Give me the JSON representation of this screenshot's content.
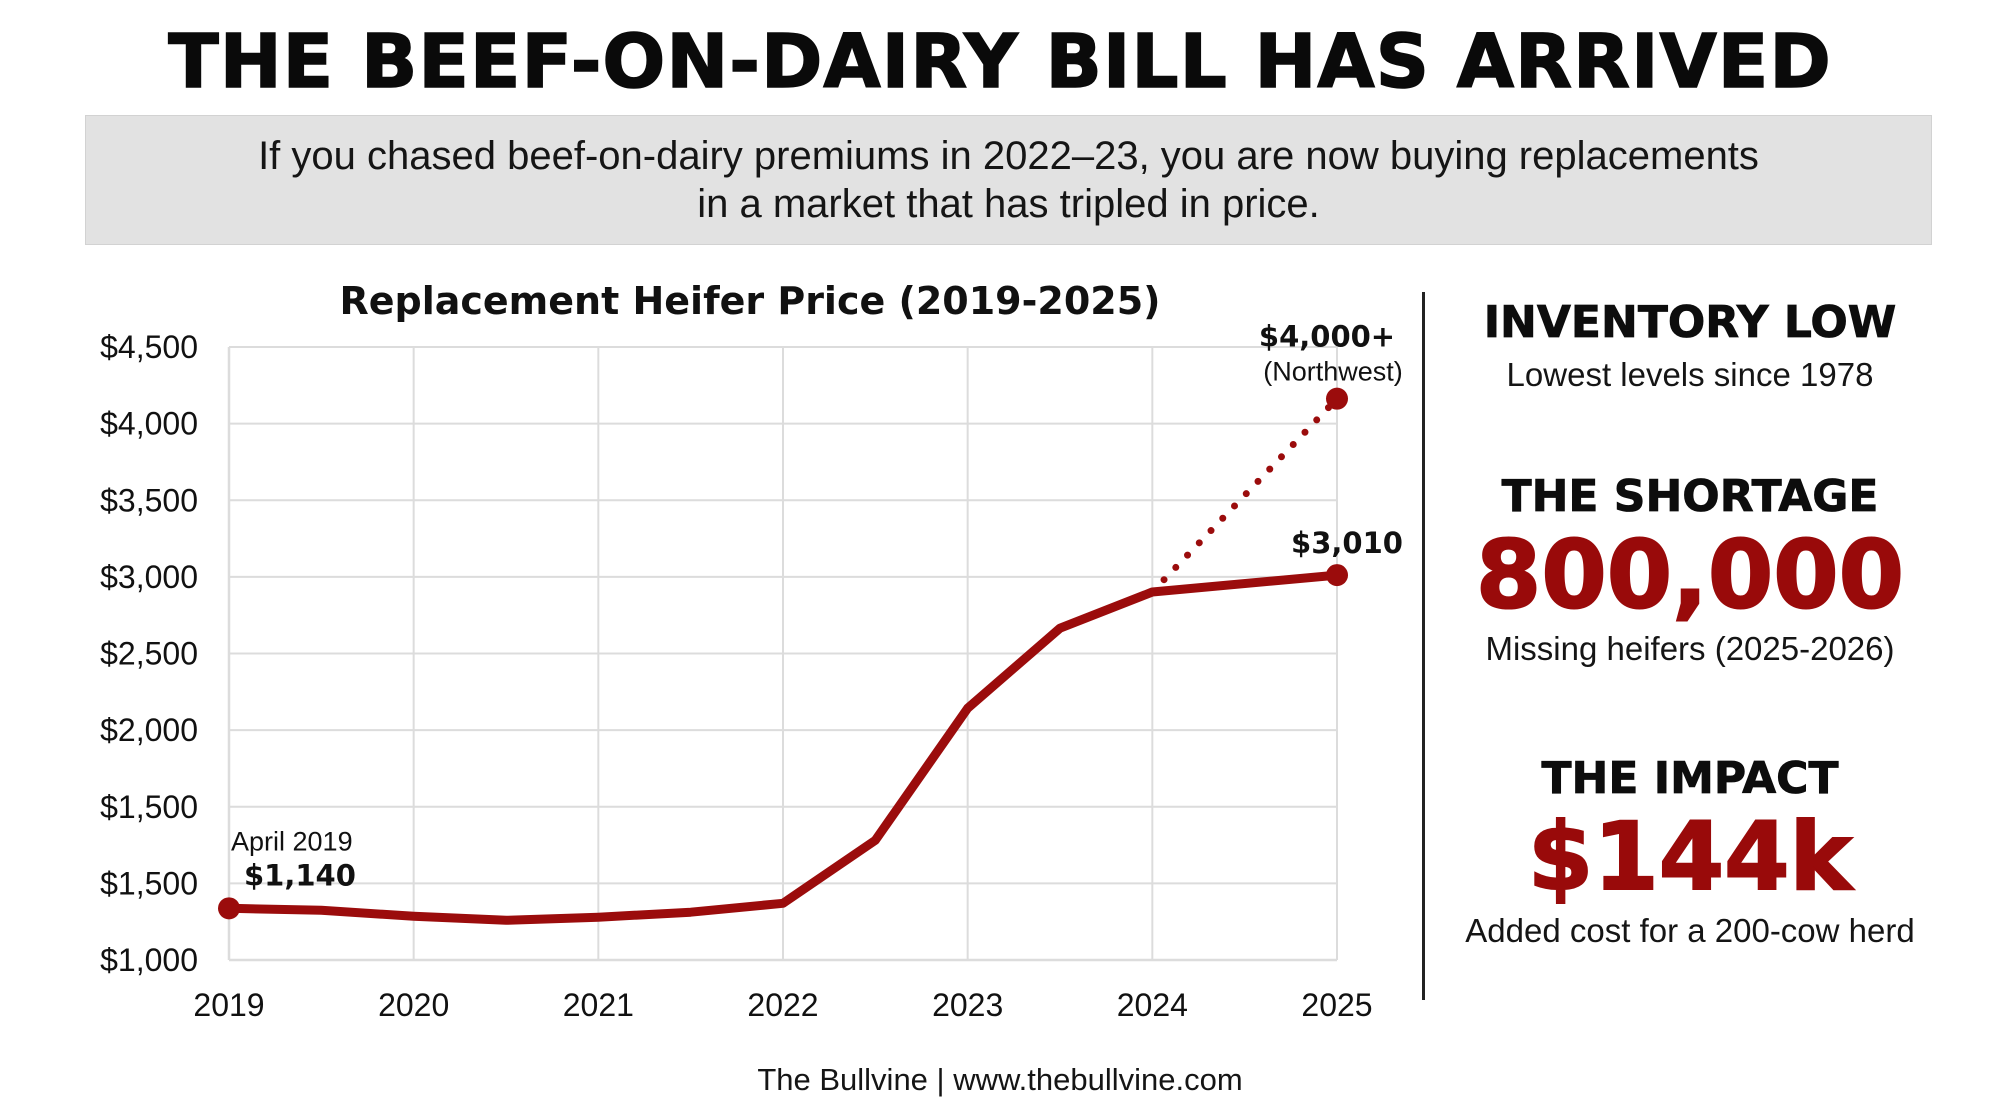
{
  "header": {
    "title": "THE BEEF-ON-DAIRY BILL HAS ARRIVED",
    "subtitle_lines": [
      "If you chased beef-on-dairy premiums in 2022–23, you are now buying replacements",
      "in a market that has tripled in price."
    ]
  },
  "colors": {
    "accent": "#990a0a",
    "line": "#9b0c0c",
    "grid": "#dcdcdc",
    "subtitle_bg": "#e2e2e2",
    "text": "#111111"
  },
  "chart_data": {
    "type": "line",
    "title": "Replacement Heifer Price (2019-2025)",
    "xlabel": "",
    "ylabel": "",
    "x_ticks": [
      "2019",
      "2020",
      "2021",
      "2022",
      "2023",
      "2024",
      "2025"
    ],
    "y_ticks": [
      "$4,500",
      "$4,000",
      "$3,500",
      "$3,000",
      "$2,500",
      "$2,000",
      "$1,500",
      "$1,500",
      "$1,000"
    ],
    "xlim": [
      2019,
      2025
    ],
    "ylim": [
      850,
      4290
    ],
    "grid": true,
    "series": [
      {
        "name": "Replacement heifer price",
        "style": "solid",
        "x": [
          2019,
          2019.5,
          2020,
          2020.5,
          2021,
          2021.5,
          2022,
          2022.5,
          2023,
          2023.5,
          2024,
          2025
        ],
        "y": [
          1140,
          1129,
          1095,
          1073,
          1090,
          1118,
          1168,
          1522,
          2263,
          2712,
          2915,
          3010
        ]
      },
      {
        "name": "Northwest",
        "style": "dotted",
        "x": [
          2024,
          2025
        ],
        "y": [
          2915,
          4000
        ]
      }
    ],
    "annotations": [
      {
        "label": "April 2019",
        "value_label": "$1,140",
        "x": 2019,
        "y": 1140
      },
      {
        "label": "",
        "value_label": "$3,010",
        "x": 2025,
        "y": 3010
      },
      {
        "label": "(Northwest)",
        "value_label": "$4,000+",
        "x": 2025,
        "y": 4000
      }
    ]
  },
  "stats": [
    {
      "heading": "INVENTORY LOW",
      "value": "",
      "caption": "Lowest levels since 1978"
    },
    {
      "heading": "THE SHORTAGE",
      "value": "800,000",
      "caption": "Missing heifers (2025-2026)"
    },
    {
      "heading": "THE IMPACT",
      "value": "$144k",
      "caption": "Added cost for a 200-cow herd"
    }
  ],
  "footer": {
    "text": "The Bullvine | www.thebullvine.com"
  }
}
